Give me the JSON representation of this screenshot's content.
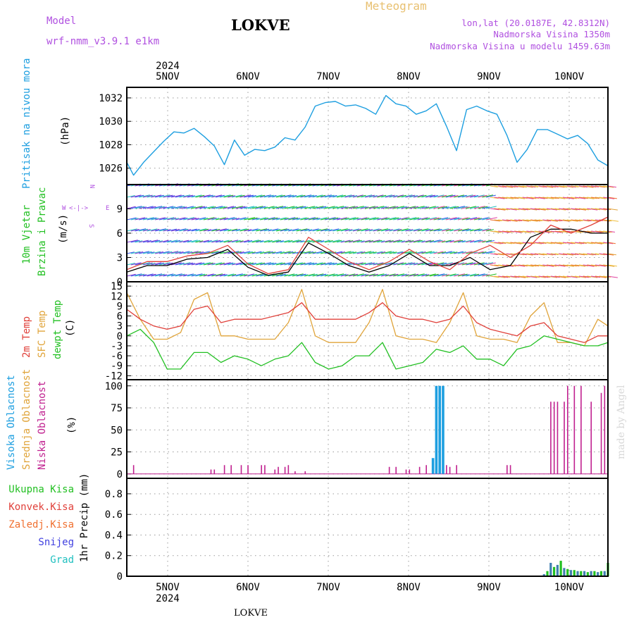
{
  "header": {
    "model_label": "Model",
    "model_value": "wrf-nmm_v3.9.1  e1km",
    "title": "LOKVE",
    "meteogram_label": "Meteogram",
    "lonlat": "lon,lat (20.0187E, 42.8312N)",
    "altitude": "Nadmorska Visina 1350m",
    "model_altitude": "Nadmorska Visina u modelu 1459.63m"
  },
  "footer": {
    "station": "LOKVE",
    "credit": "made by Angel"
  },
  "colors": {
    "pressure": "#1e9fe0",
    "temp2m": "#e0403a",
    "sfc_temp": "#e0a43a",
    "dewpoint": "#22c022",
    "high_cloud": "#1e9fe0",
    "mid_cloud": "#e0a43a",
    "low_cloud": "#c0208f",
    "total_precip": "#22c022",
    "conv_precip": "#e0403a",
    "frozen_precip": "#f07030",
    "snow": "#4040e0",
    "graupel": "#20c0c0",
    "wind_label": "#22c022",
    "compass": "#b050e0"
  },
  "time_axis": {
    "top_year": "2024",
    "bottom_year": "2024",
    "days": [
      "5NOV",
      "6NOV",
      "7NOV",
      "8NOV",
      "9NOV",
      "10NOV"
    ]
  },
  "panels": {
    "pressure": {
      "label1": "Pritisak na nivou mora",
      "unit": "(hPa)",
      "ticks": [
        "1026",
        "1028",
        "1030",
        "1032"
      ]
    },
    "wind": {
      "label1": "10m Vjetar",
      "label2": "Brzina i Pravac",
      "unit": "(m/s)",
      "ticks": [
        "0",
        "3",
        "6",
        "9"
      ],
      "compass_w": "W",
      "compass_e": "E",
      "compass_n": "N",
      "compass_s": "S"
    },
    "temp": {
      "label1": "2m Temp",
      "label2": "SFC Temp",
      "label3": "dewpt Temp",
      "unit": "(C)",
      "ticks": [
        "-12",
        "-9",
        "-6",
        "-3",
        "0",
        "3",
        "6",
        "9",
        "12",
        "15"
      ]
    },
    "cloud": {
      "label1": "Visoka Oblacnost",
      "label2": "Srednja Oblacnost",
      "label3": "Niska Oblacnost",
      "unit": "(%)",
      "ticks": [
        "0",
        "25",
        "50",
        "75",
        "100"
      ]
    },
    "precip": {
      "label1": "Ukupna Kisa",
      "label2": "Konvek.Kisa",
      "label3": "Zaledj.Kisa",
      "label4": "Snijeg",
      "label5": "Grad",
      "unit": "1hr Precip (mm)",
      "ticks": [
        "0",
        "0.2",
        "0.4",
        "0.6",
        "0.8"
      ]
    }
  },
  "chart_data": [
    {
      "type": "line",
      "title": "Pritisak na nivou mora",
      "ylabel": "(hPa)",
      "ylim": [
        1024.6,
        1032.9
      ],
      "x": [
        0,
        2,
        5,
        8,
        11,
        14,
        17,
        20,
        23,
        26,
        29,
        32,
        35,
        38,
        41,
        44,
        47,
        50,
        53,
        56,
        59,
        62,
        65,
        68,
        71,
        74,
        77,
        80,
        83,
        86,
        89,
        92,
        95,
        98,
        101,
        104,
        107,
        110,
        113,
        116,
        119,
        122,
        125,
        128,
        131,
        134,
        137,
        140,
        143
      ],
      "values": [
        1026.5,
        1025.4,
        1026.5,
        1027.4,
        1028.3,
        1029.1,
        1029.0,
        1029.4,
        1028.7,
        1027.9,
        1026.3,
        1028.4,
        1027.1,
        1027.6,
        1027.5,
        1027.8,
        1028.6,
        1028.4,
        1029.5,
        1031.3,
        1031.6,
        1031.7,
        1031.3,
        1031.4,
        1031.1,
        1030.6,
        1032.2,
        1031.5,
        1031.3,
        1030.6,
        1030.9,
        1031.5,
        1029.6,
        1027.5,
        1031.0,
        1031.3,
        1030.9,
        1030.6,
        1028.8,
        1026.5,
        1027.6,
        1029.3,
        1029.3,
        1028.9,
        1028.5,
        1028.8,
        1028.1,
        1026.7,
        1026.2
      ],
      "grid": true
    },
    {
      "type": "line",
      "title": "10m Vjetar Brzina i Pravac",
      "ylabel": "(m/s)",
      "ylim": [
        0,
        12
      ],
      "x": [
        0,
        6,
        12,
        18,
        24,
        30,
        36,
        42,
        48,
        54,
        60,
        66,
        72,
        78,
        84,
        90,
        96,
        102,
        108,
        114,
        120,
        126,
        132,
        138,
        143
      ],
      "series": [
        {
          "values": [
            1.5,
            2.5,
            2.5,
            3.2,
            3.5,
            4.5,
            2.2,
            1.0,
            1.5,
            5.5,
            4.0,
            2.5,
            1.5,
            2.5,
            4.0,
            2.5,
            1.5,
            3.5,
            4.5,
            3.0,
            4.5,
            7.0,
            6.0,
            7.0,
            8.0
          ]
        },
        {
          "values": [
            1.2,
            2.0,
            2.0,
            2.8,
            3.0,
            4.0,
            1.8,
            0.8,
            1.2,
            4.8,
            3.5,
            2.0,
            1.2,
            2.0,
            3.5,
            2.0,
            2.0,
            3.0,
            1.5,
            2.0,
            5.5,
            6.5,
            6.5,
            6.0,
            6.0
          ]
        }
      ],
      "grid": true
    },
    {
      "type": "line",
      "title": "2m Temp / SFC Temp / dewpt Temp",
      "ylabel": "(C)",
      "ylim": [
        -12,
        15
      ],
      "x": [
        0,
        4,
        8,
        12,
        16,
        20,
        24,
        28,
        32,
        36,
        40,
        44,
        48,
        52,
        56,
        60,
        64,
        68,
        72,
        76,
        80,
        84,
        88,
        92,
        96,
        100,
        104,
        108,
        112,
        116,
        120,
        124,
        128,
        132,
        136,
        140,
        143
      ],
      "series": [
        {
          "name": "2m Temp",
          "values": [
            8,
            5,
            3,
            2,
            3,
            8,
            9,
            4,
            5,
            5,
            5,
            6,
            7,
            10,
            5,
            5,
            5,
            5,
            7,
            10,
            6,
            5,
            5,
            4,
            5,
            9,
            4,
            2,
            1,
            0,
            3,
            4,
            0,
            -1,
            -2,
            0,
            0
          ]
        },
        {
          "name": "SFC Temp",
          "values": [
            13,
            5,
            -1,
            -1,
            1,
            11,
            13,
            0,
            0,
            -1,
            -1,
            -1,
            4,
            14,
            0,
            -2,
            -2,
            -2,
            4,
            14,
            0,
            -1,
            -1,
            -2,
            4,
            13,
            0,
            -1,
            -1,
            -2,
            6,
            10,
            -2,
            -2,
            -3,
            5,
            3
          ]
        },
        {
          "name": "dewpt Temp",
          "values": [
            0,
            2,
            -2,
            -10,
            -10,
            -5,
            -5,
            -8,
            -6,
            -7,
            -9,
            -7,
            -6,
            -2,
            -8,
            -10,
            -9,
            -6,
            -6,
            -2,
            -10,
            -9,
            -8,
            -4,
            -5,
            -3,
            -7,
            -7,
            -9,
            -4,
            -3,
            0,
            -1,
            -2,
            -3,
            -3,
            -2
          ]
        }
      ],
      "grid": true
    },
    {
      "type": "bar",
      "title": "Oblacnost",
      "ylabel": "(%)",
      "ylim": [
        0,
        100
      ],
      "series": [
        {
          "name": "Visoka Oblacnost",
          "x": [
            91,
            92,
            93,
            94
          ],
          "values": [
            18,
            100,
            100,
            100
          ]
        },
        {
          "name": "Niska Oblacnost",
          "x": [
            2,
            25,
            26,
            29,
            31,
            34,
            36,
            40,
            41,
            44,
            45,
            47,
            48,
            50,
            53,
            78,
            80,
            83,
            84,
            87,
            89,
            95,
            96,
            98,
            113,
            114,
            126,
            127,
            128,
            130,
            131,
            133,
            135,
            138,
            141,
            142
          ],
          "values": [
            10,
            5,
            5,
            10,
            10,
            10,
            10,
            10,
            10,
            5,
            8,
            8,
            10,
            3,
            3,
            8,
            8,
            5,
            5,
            8,
            10,
            10,
            8,
            10,
            10,
            10,
            82,
            82,
            82,
            82,
            100,
            100,
            100,
            82,
            92,
            100
          ]
        }
      ],
      "grid": true
    },
    {
      "type": "bar",
      "title": "1hr Precip",
      "ylabel": "1hr Precip (mm)",
      "ylim": [
        0,
        0.95
      ],
      "series": [
        {
          "name": "Ukupna Kisa",
          "x": [
            124,
            125,
            126,
            127,
            128,
            129,
            130,
            131,
            132,
            133,
            134,
            135,
            136,
            137,
            138,
            139,
            140,
            141,
            142,
            143
          ],
          "values": [
            0.02,
            0.05,
            0.13,
            0.09,
            0.11,
            0.15,
            0.08,
            0.07,
            0.06,
            0.06,
            0.05,
            0.05,
            0.05,
            0.04,
            0.05,
            0.05,
            0.04,
            0.05,
            0.05,
            0.13
          ]
        }
      ],
      "grid": true
    }
  ]
}
